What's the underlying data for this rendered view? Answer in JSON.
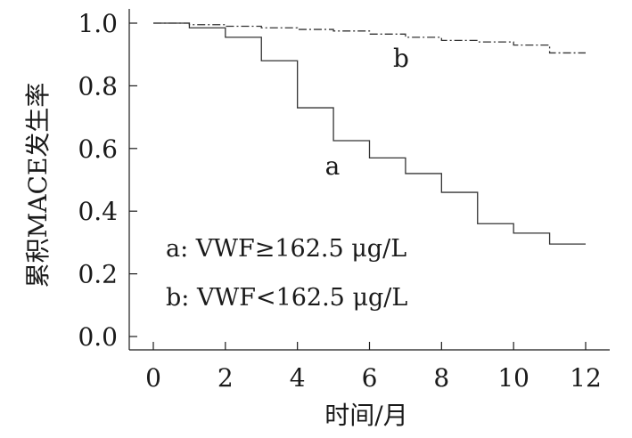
{
  "chart_data": {
    "type": "line",
    "title": "",
    "xlabel": "时间/月",
    "ylabel": "累积MACE发生率",
    "xlim": [
      0,
      12
    ],
    "ylim": [
      0,
      1.0
    ],
    "xticks": [
      "0",
      "2",
      "4",
      "6",
      "8",
      "10",
      "12"
    ],
    "yticks": [
      "0.0",
      "0.2",
      "0.4",
      "0.6",
      "0.8",
      "1.0"
    ],
    "grid": false,
    "series": [
      {
        "name": "a",
        "style": "solid",
        "color": "#333333",
        "x": [
          0,
          1,
          2,
          3,
          4,
          5,
          6,
          7,
          8,
          9,
          10,
          11,
          12
        ],
        "y": [
          1.0,
          0.985,
          0.955,
          0.88,
          0.73,
          0.625,
          0.57,
          0.52,
          0.46,
          0.36,
          0.33,
          0.295,
          0.295
        ]
      },
      {
        "name": "b",
        "style": "dashdot",
        "color": "#333333",
        "x": [
          0,
          1,
          2,
          3,
          4,
          5,
          6,
          7,
          8,
          9,
          10,
          11,
          12
        ],
        "y": [
          1.0,
          0.995,
          0.99,
          0.985,
          0.98,
          0.975,
          0.965,
          0.955,
          0.945,
          0.94,
          0.93,
          0.905,
          0.905
        ]
      }
    ],
    "legend": [
      "a: VWF≥162.5 μg/L",
      "b: VWF<162.5 μg/L"
    ]
  }
}
